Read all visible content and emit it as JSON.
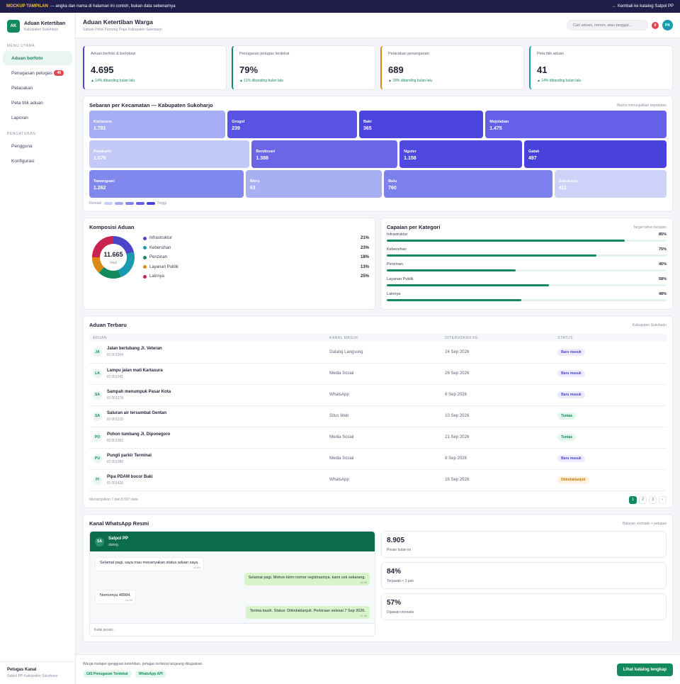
{
  "topbar": {
    "tag": "MOCKUP TAMPILAN",
    "note": "— angka dan nama di halaman ini contoh, bukan data sebenarnya",
    "back": "← Kembali ke katalog Satpol PP"
  },
  "brand": {
    "logo": "AK",
    "title": "Aduan Ketertiban",
    "subtitle": "Kabupaten Sukoharjo"
  },
  "sidebar": {
    "sec1": "MENU UTAMA",
    "sec2": "PENGATURAN",
    "items": [
      {
        "label": "Aduan berfoto",
        "active": true
      },
      {
        "label": "Penugasan petugas",
        "badge": "46"
      },
      {
        "label": "Pelacakan"
      },
      {
        "label": "Peta titik aduan"
      },
      {
        "label": "Laporan"
      }
    ],
    "settings": [
      {
        "label": "Pengguna"
      },
      {
        "label": "Konfigurasi"
      }
    ],
    "footer": {
      "title": "Petugas Kanal",
      "subtitle": "Satpol PP Kabupaten Sukoharjo"
    }
  },
  "header": {
    "title": "Aduan Ketertiban Warga",
    "subtitle": "Satuan Polisi Pamong Praja Kabupaten Sukoharjo",
    "search_placeholder": "Cari aduan, nomor, atau tanggal...",
    "notif": "8",
    "avatar": "PK"
  },
  "kpis": [
    {
      "label": "Aduan berfoto & berlokasi",
      "value": "4.695",
      "change": "▲ 14% dibanding bulan lalu",
      "accent": "#4b46c9"
    },
    {
      "label": "Penugasan petugas terdekat",
      "value": "79%",
      "change": "▲ 11% dibanding bulan lalu",
      "accent": "#138a5e"
    },
    {
      "label": "Pelacakan penanganan",
      "value": "689",
      "change": "▲ 18% dibanding bulan lalu",
      "accent": "#d98a12"
    },
    {
      "label": "Peta titik aduan",
      "value": "41",
      "change": "▲ 14% dibanding bulan lalu",
      "accent": "#1a9ab0"
    }
  ],
  "treemap": {
    "title": "Sebaran per Kecamatan — Kabupaten Sukoharjo",
    "note": "Warna menunjukkan kepadatan",
    "rows": [
      [
        {
          "name": "Kartasura",
          "value": "1.781",
          "color": "#a5adf4"
        },
        {
          "name": "Grogol",
          "value": "239",
          "color": "#5953e3"
        },
        {
          "name": "Baki",
          "value": "365",
          "color": "#4b44dd"
        },
        {
          "name": "Mojolaban",
          "value": "1.475",
          "color": "#6460e8"
        }
      ],
      [
        {
          "name": "Polokarto",
          "value": "1.076",
          "color": "#c4caf8"
        },
        {
          "name": "Bendosari",
          "value": "1.388",
          "color": "#6a66e6"
        },
        {
          "name": "Nguter",
          "value": "1.158",
          "color": "#4f49df"
        },
        {
          "name": "Gatak",
          "value": "497",
          "color": "#4841dc"
        }
      ],
      [
        {
          "name": "Tawangsari",
          "value": "1.262",
          "color": "#8088ee"
        },
        {
          "name": "Weru",
          "value": "63",
          "color": "#a8b0f4"
        },
        {
          "name": "Bulu",
          "value": "760",
          "color": "#7c80ec"
        },
        {
          "name": "Sukoharjo",
          "value": "411",
          "color": "#cdd2f8"
        }
      ]
    ],
    "legend_low": "Rendah",
    "legend_high": "Tinggi",
    "legend_colors": [
      "#c9cef8",
      "#a5adf4",
      "#8088ee",
      "#6460e8",
      "#4841dc"
    ]
  },
  "donut": {
    "title": "Komposisi Aduan",
    "total": "11.665",
    "total_label": "total",
    "items": [
      {
        "label": "Infrastruktur",
        "pct": "21%",
        "value": 21,
        "color": "#4b46c9"
      },
      {
        "label": "Kebersihan",
        "pct": "23%",
        "value": 23,
        "color": "#1a9ab0"
      },
      {
        "label": "Perizinan",
        "pct": "18%",
        "value": 18,
        "color": "#138a5e"
      },
      {
        "label": "Layanan Publik",
        "pct": "13%",
        "value": 13,
        "color": "#d98a12"
      },
      {
        "label": "Lainnya",
        "pct": "25%",
        "value": 25,
        "color": "#c8244f"
      }
    ]
  },
  "capaian": {
    "title": "Capaian per Kategori",
    "note": "Target tahun berjalan",
    "items": [
      {
        "label": "Infrastruktur",
        "pct": "85%",
        "value": 85
      },
      {
        "label": "Kebersihan",
        "pct": "75%",
        "value": 75
      },
      {
        "label": "Perizinan",
        "pct": "46%",
        "value": 46
      },
      {
        "label": "Layanan Publik",
        "pct": "58%",
        "value": 58
      },
      {
        "label": "Lainnya",
        "pct": "48%",
        "value": 48
      }
    ]
  },
  "recent": {
    "title": "Aduan Terbaru",
    "note": "Kabupaten Sukoharjo",
    "columns": [
      "ADUAN",
      "KANAL MASUK",
      "DITERUSKAN KE",
      "STATUS"
    ],
    "rows": [
      {
        "ini": "JA",
        "title": "Jalan berlubang Jl. Veteran",
        "id": "ID 001204",
        "channel": "Datang Langsung",
        "date": "24 Sep 2026",
        "status": "Baru masuk",
        "kind": "new"
      },
      {
        "ini": "LA",
        "title": "Lampu jalan mati Kartasura",
        "id": "ID 001241",
        "channel": "Media Sosial",
        "date": "26 Sep 2026",
        "status": "Baru masuk",
        "kind": "new"
      },
      {
        "ini": "SA",
        "title": "Sampah menumpuk Pasar Kota",
        "id": "ID 001278",
        "channel": "WhatsApp",
        "date": "6 Sep 2026",
        "status": "Baru masuk",
        "kind": "new"
      },
      {
        "ini": "SA",
        "title": "Saluran air tersumbat Gentan",
        "id": "ID 001315",
        "channel": "Situs Web",
        "date": "10 Sep 2026",
        "status": "Tuntas",
        "kind": "done"
      },
      {
        "ini": "PO",
        "title": "Pohon tumbang Jl. Diponegoro",
        "id": "ID 001352",
        "channel": "Media Sosial",
        "date": "21 Sep 2026",
        "status": "Tuntas",
        "kind": "done"
      },
      {
        "ini": "PU",
        "title": "Pungli parkir Terminal",
        "id": "ID 001389",
        "channel": "Media Sosial",
        "date": "8 Sep 2026",
        "status": "Baru masuk",
        "kind": "new"
      },
      {
        "ini": "PI",
        "title": "Pipa PDAM bocor Baki",
        "id": "ID 001426",
        "channel": "WhatsApp",
        "date": "16 Sep 2026",
        "status": "Ditindaklanjuti",
        "kind": "fol"
      }
    ],
    "showing": "Menampilkan 7 dari 8.597 data",
    "pages": [
      "1",
      "2",
      "3",
      "›"
    ]
  },
  "whatsapp": {
    "title": "Kanal WhatsApp Resmi",
    "note": "Balasan otomatis + petugas",
    "contact": {
      "ini": "SA",
      "name": "Satpol PP",
      "status": "daring"
    },
    "messages": [
      {
        "dir": "in",
        "text": "Selamat pagi, saya mau menanyakan status aduan saya.",
        "time": "11.40"
      },
      {
        "dir": "out",
        "text": "Selamat pagi. Mohon kirim nomor registrasinya, kami cek sekarang.",
        "time": "11.58"
      },
      {
        "dir": "in",
        "text": "Nomornya 48984.",
        "time": "11.15"
      },
      {
        "dir": "out",
        "text": "Terima kasih. Status: Ditindaklanjuti. Perkiraan selesai 7 Sep 2026.",
        "time": "11.48"
      }
    ],
    "input_placeholder": "Ketik pesan...",
    "stats": [
      {
        "value": "8.905",
        "label": "Pesan bulan ini"
      },
      {
        "value": "84%",
        "label": "Terjawab < 1 jam"
      },
      {
        "value": "57%",
        "label": "Dijawab otomatis"
      }
    ]
  },
  "footer": {
    "text": "Warga melapor gangguan ketertiban, petugas terdekat langsung ditugaskan.",
    "chips": [
      "GIS Penugasan Terdekat",
      "WhatsApp API"
    ],
    "cta": "Lihat katalog lengkap"
  }
}
